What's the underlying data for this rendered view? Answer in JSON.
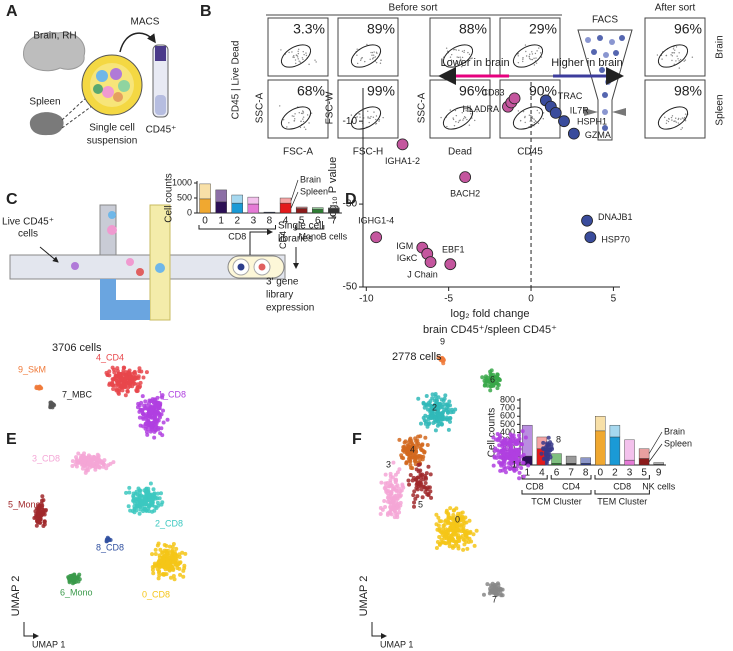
{
  "letters": [
    "A",
    "B",
    "C",
    "D",
    "E",
    "F"
  ],
  "panel_a": {
    "tissues": [
      "Brain, RH",
      "Spleen"
    ],
    "method": "MACS",
    "suspension": [
      "Single cell",
      "suspension"
    ],
    "tube": "CD45⁺"
  },
  "panel_b": {
    "before": "Before sort",
    "after": "After sort",
    "facs": "FACS",
    "rows": [
      "Brain",
      "Spleen"
    ],
    "y_group": "CD45 | Live Dead",
    "plots": [
      {
        "y": "SSC-A",
        "x": "FSC-A",
        "pct": [
          "3.3%",
          "68%"
        ]
      },
      {
        "y": "FSC-W",
        "x": "FSC-H",
        "pct": [
          "89%",
          "99%"
        ]
      },
      {
        "y": "SSC-A",
        "x": "Dead",
        "pct": [
          "88%",
          "96%"
        ]
      },
      {
        "x": "CD45",
        "pct": [
          "29%",
          "90%"
        ]
      }
    ],
    "after_pct": [
      "96%",
      "98%"
    ]
  },
  "panel_c": {
    "cells": [
      "Live CD45⁺",
      "cells"
    ],
    "libraries": [
      "Single cell",
      "libraries"
    ],
    "expression": [
      "3′ gene",
      "library",
      "expression"
    ]
  },
  "umap_e": {
    "count": "3706 cells",
    "x": "UMAP 1",
    "y": "UMAP 2",
    "clusters": [
      "9_SkM",
      "7_MBC",
      "4_CD4",
      "1_CD8",
      "3_CD8",
      "5_Mono",
      "2_CD8",
      "8_CD8",
      "6_Mono",
      "0_CD8"
    ]
  },
  "umap_f": {
    "count": "2778 cells",
    "x": "UMAP 1",
    "y": "UMAP 2",
    "clusters": [
      "9",
      "6",
      "2",
      "4",
      "3",
      "8",
      "1",
      "0",
      "7",
      "5"
    ]
  },
  "chart_data": [
    {
      "type": "scatter",
      "x_label": "log₂ fold change",
      "x_sublabel": "brain CD45⁺/spleen CD45⁺",
      "y_label": "log₁₀ P value",
      "xlim": [
        -10.2,
        5.4
      ],
      "ylim": [
        -50,
        -2
      ],
      "xticks": [
        -10,
        -5,
        0,
        5
      ],
      "yticks": [
        -10,
        -30,
        -50
      ],
      "reference_x": 0,
      "series": [
        {
          "name": "Lower in brain",
          "color": "#c4569e",
          "arrow_color": "#e6007e",
          "x": [
            -7.8,
            -1.4,
            -1.2,
            -1.0,
            -4.0,
            -9.4,
            -6.6,
            -6.3,
            -6.1,
            -4.9
          ],
          "values": [
            -15.6,
            -6.5,
            -5.5,
            -4.5,
            -23.5,
            -38,
            -40.5,
            -42,
            -44,
            -44.5
          ],
          "labels": [
            "IGHA1-2",
            "HLADRA",
            null,
            "CD83",
            "BACH2",
            "IGHG1-4",
            "IGM",
            "IGκC",
            "J Chain",
            "EBF1"
          ]
        },
        {
          "name": "Higher in brain",
          "color": "#3a4c9c",
          "arrow_color": "#3c3c9c",
          "x": [
            0.9,
            1.2,
            1.5,
            2.0,
            2.6,
            3.4,
            3.6
          ],
          "values": [
            -5,
            -6.5,
            -8,
            -10,
            -13,
            -34,
            -38
          ],
          "labels": [
            "TRAC",
            null,
            "IL7R",
            "HSPH1",
            "GZMA",
            "DNAJB1",
            "HSP70"
          ]
        }
      ]
    },
    {
      "type": "bar",
      "stacked": true,
      "y_label": "Cell counts",
      "ylim": [
        0,
        1000
      ],
      "yticks": [
        0,
        500,
        1000
      ],
      "categories": [
        "0",
        "1",
        "2",
        "3",
        "8",
        "4",
        "5",
        "6",
        "7"
      ],
      "groups": [
        "CD8",
        "CD4",
        "Mono",
        "B cells"
      ],
      "series": [
        {
          "name": "Spleen",
          "colors": [
            "#f0a830",
            "#2c0f55",
            "#1a9ad6",
            "#e57ad6",
            "#2a3a8c",
            "#e31a1c",
            "#8b1a1a",
            "#2e7d32",
            "#333333"
          ],
          "values": [
            470,
            370,
            330,
            300,
            20,
            330,
            150,
            120,
            150
          ]
        },
        {
          "name": "Brain",
          "colors": [
            "#f8e0a8",
            "#8c6fa6",
            "#a6d8ef",
            "#f3c1ec",
            "#9aa5d0",
            "#f5a5a5",
            "#c98a8a",
            "#8fc494",
            "#a0a0a0"
          ],
          "values": [
            500,
            400,
            270,
            230,
            10,
            170,
            50,
            60,
            20
          ]
        }
      ]
    },
    {
      "type": "bar",
      "stacked": true,
      "y_label": "Cell counts",
      "ylim": [
        0,
        800
      ],
      "yticks": [
        0,
        100,
        200,
        300,
        400,
        500,
        600,
        700,
        800
      ],
      "categories": [
        "1",
        "4",
        "6",
        "7",
        "8",
        "0",
        "2",
        "3",
        "5",
        "9"
      ],
      "groups": [
        "CD8",
        "CD4",
        "CD8",
        "NK cells"
      ],
      "clusters": [
        "TCM Cluster",
        "TEM Cluster"
      ],
      "series": [
        {
          "name": "Spleen",
          "colors": [
            "#2c0f55",
            "#e31a1c",
            "#2e7d32",
            "#333333",
            "#2a3a8c",
            "#f0a830",
            "#1a9ad6",
            "#e57ad6",
            "#8b1a1a",
            "#555555"
          ],
          "values": [
            110,
            200,
            20,
            20,
            20,
            420,
            345,
            60,
            80,
            10
          ]
        },
        {
          "name": "Brain",
          "colors": [
            "#b98ee0",
            "#f5a5a5",
            "#7fbf7f",
            "#9a9a9a",
            "#8c96c8",
            "#f8e0a8",
            "#a6d8ef",
            "#f3c1ec",
            "#e8a0a0",
            "#b0b0b0"
          ],
          "values": [
            380,
            145,
            120,
            90,
            70,
            180,
            145,
            250,
            120,
            20
          ]
        }
      ]
    }
  ]
}
